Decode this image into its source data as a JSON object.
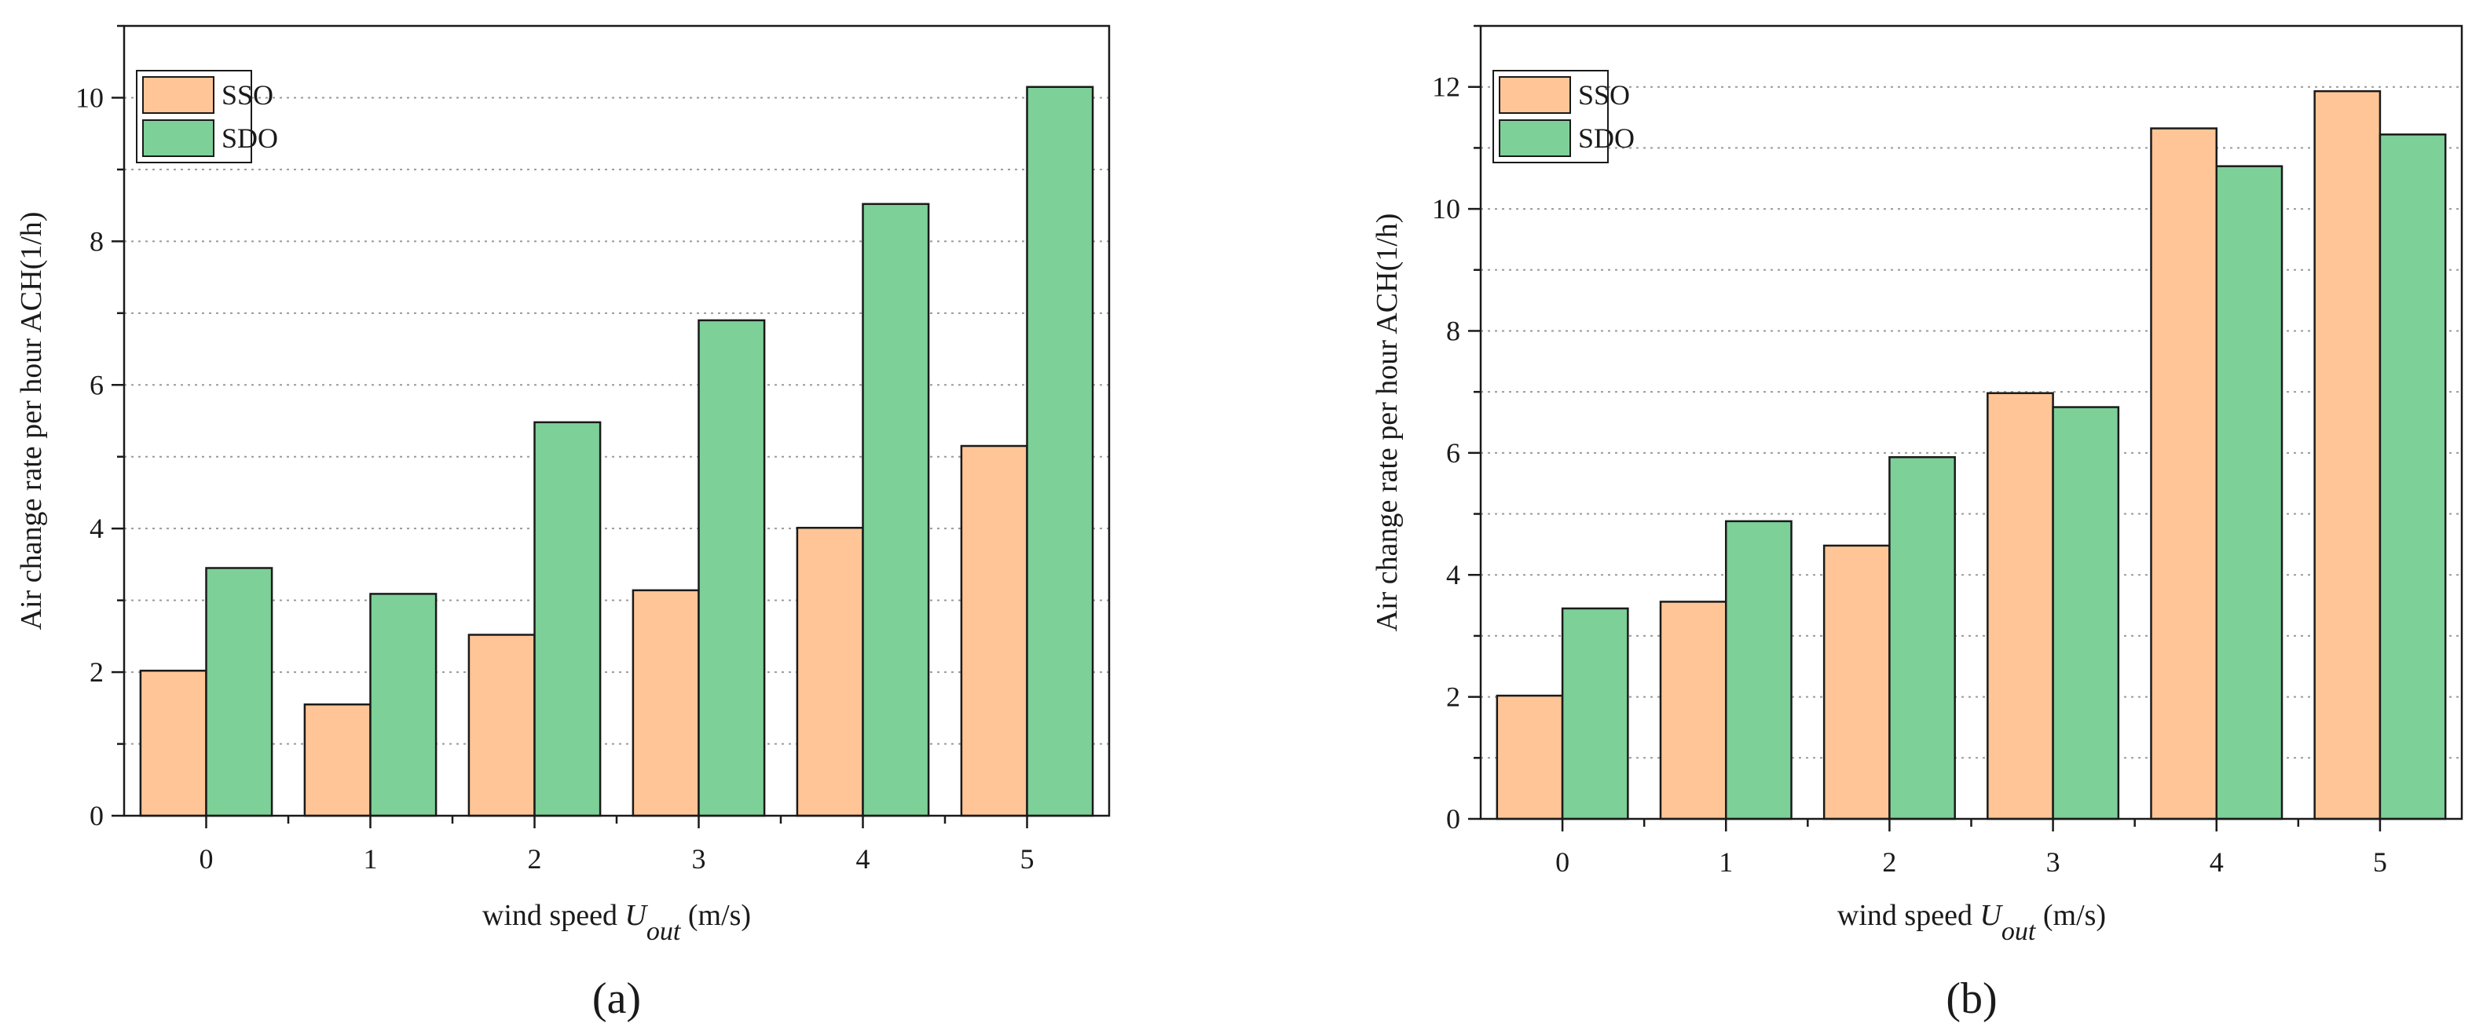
{
  "chart_data": [
    {
      "id": "a",
      "type": "bar",
      "panel_label": "(a)",
      "categories": [
        "0",
        "1",
        "2",
        "3",
        "4",
        "5"
      ],
      "series": [
        {
          "name": "SSO",
          "values": [
            2.02,
            1.55,
            2.52,
            3.14,
            4.01,
            5.15
          ]
        },
        {
          "name": "SDO",
          "values": [
            3.45,
            3.09,
            5.48,
            6.9,
            8.52,
            10.15
          ]
        }
      ],
      "xlabel": {
        "prefix": "wind speed ",
        "var": "U",
        "sub": "out",
        "suffix": " (m/s)"
      },
      "ylabel": "Air change rate per hour ACH(1/h)",
      "ylim": [
        0,
        11
      ],
      "yticks": [
        0,
        2,
        4,
        6,
        8,
        10
      ],
      "grid": true,
      "legend_position": "top-left"
    },
    {
      "id": "b",
      "type": "bar",
      "panel_label": "(b)",
      "categories": [
        "0",
        "1",
        "2",
        "3",
        "4",
        "5"
      ],
      "series": [
        {
          "name": "SSO",
          "values": [
            2.02,
            3.56,
            4.48,
            6.98,
            11.32,
            11.93
          ]
        },
        {
          "name": "SDO",
          "values": [
            3.45,
            4.88,
            5.93,
            6.75,
            10.7,
            11.22
          ]
        }
      ],
      "xlabel": {
        "prefix": "wind speed ",
        "var": "U",
        "sub": "out",
        "suffix": " (m/s)"
      },
      "ylabel": "Air change rate per hour ACH(1/h)",
      "ylim": [
        0,
        13
      ],
      "yticks": [
        0,
        2,
        4,
        6,
        8,
        10,
        12
      ],
      "grid": true,
      "legend_position": "top-left"
    }
  ],
  "colors": {
    "SSO": "#FFC596",
    "SDO": "#7DD098",
    "edge": "#1a1a1a",
    "grid": "#9a9a9a"
  }
}
